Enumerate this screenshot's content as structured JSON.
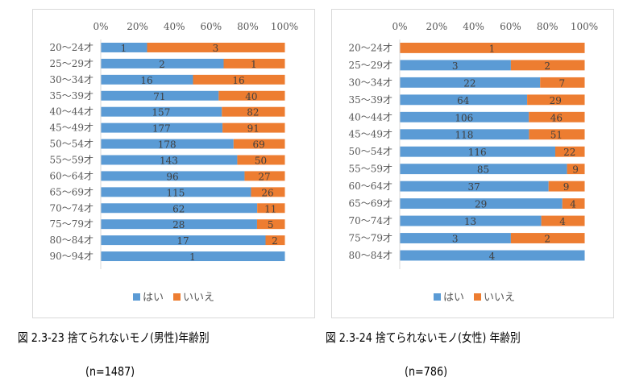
{
  "colors": {
    "yes": "#5b9bd5",
    "no": "#ed7d31",
    "axis": "#d9d9d9"
  },
  "legend": {
    "yes": "はい",
    "no": "いいえ"
  },
  "chart_data": [
    {
      "type": "bar",
      "orientation": "horizontal",
      "stacked": "percent",
      "title": "",
      "caption": "図 2.3-23 捨てられないモノ(男性)年齢別",
      "n_label": "(n=1487)",
      "xlabel": "",
      "ylabel": "",
      "xlim": [
        0,
        100
      ],
      "x_ticks": [
        "0%",
        "20%",
        "40%",
        "60%",
        "80%",
        "100%"
      ],
      "x_axis_position": "top",
      "legend_position": "bottom",
      "categories": [
        "20～24才",
        "25～29才",
        "30～34才",
        "35～39才",
        "40～44才",
        "45～49才",
        "50～54才",
        "55～59才",
        "60～64才",
        "65～69才",
        "70～74才",
        "75～79才",
        "80～84才",
        "90～94才"
      ],
      "series": [
        {
          "name": "はい",
          "values": [
            1,
            2,
            16,
            71,
            157,
            177,
            178,
            143,
            96,
            115,
            62,
            28,
            17,
            1
          ]
        },
        {
          "name": "いいえ",
          "values": [
            3,
            1,
            16,
            40,
            82,
            91,
            69,
            50,
            27,
            26,
            11,
            5,
            2,
            0
          ]
        }
      ]
    },
    {
      "type": "bar",
      "orientation": "horizontal",
      "stacked": "percent",
      "title": "",
      "caption": "図 2.3-24 捨てられないモノ(女性) 年齢別",
      "n_label": "(n=786)",
      "xlabel": "",
      "ylabel": "",
      "xlim": [
        0,
        100
      ],
      "x_ticks": [
        "0%",
        "20%",
        "40%",
        "60%",
        "80%",
        "100%"
      ],
      "x_axis_position": "top",
      "legend_position": "bottom",
      "categories": [
        "20～24才",
        "25～29才",
        "30～34才",
        "35～39才",
        "40～44才",
        "45～49才",
        "50～54才",
        "55～59才",
        "60～64才",
        "65～69才",
        "70～74才",
        "75～79才",
        "80～84才"
      ],
      "series": [
        {
          "name": "はい",
          "values": [
            0,
            3,
            22,
            64,
            106,
            118,
            116,
            85,
            37,
            29,
            13,
            3,
            4
          ]
        },
        {
          "name": "いいえ",
          "values": [
            1,
            2,
            7,
            29,
            46,
            51,
            22,
            9,
            9,
            4,
            4,
            2,
            0
          ]
        }
      ]
    }
  ]
}
